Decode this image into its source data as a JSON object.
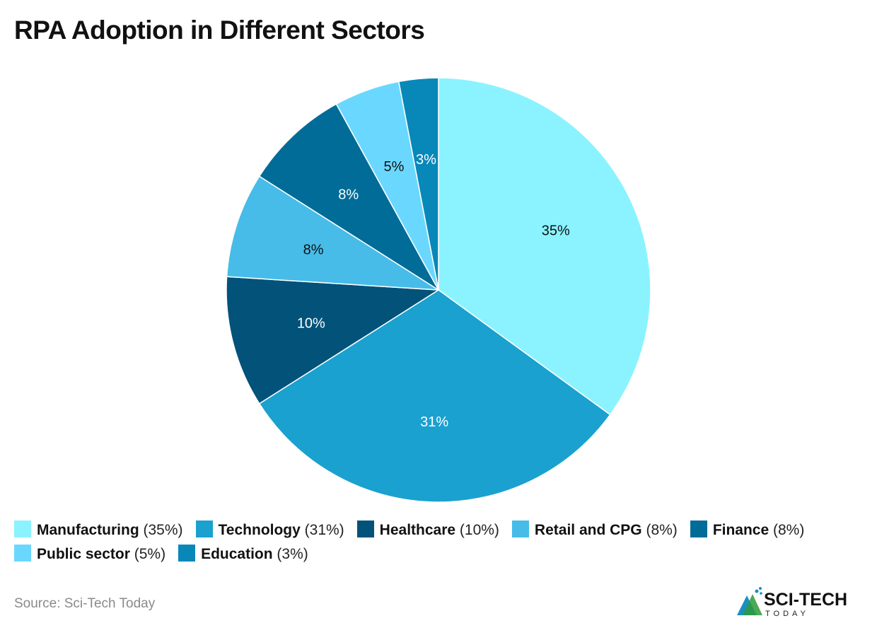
{
  "chart_data": {
    "type": "pie",
    "title": "RPA Adoption in Different Sectors",
    "slices": [
      {
        "label": "Manufacturing",
        "value": 35,
        "data_label": "35%",
        "legend_value": "(35%)",
        "color": "#8af3ff",
        "text_color": "#111111"
      },
      {
        "label": "Technology",
        "value": 31,
        "data_label": "31%",
        "legend_value": "(31%)",
        "color": "#1aa1cf",
        "text_color": "#ffffff"
      },
      {
        "label": "Healthcare",
        "value": 10,
        "data_label": "10%",
        "legend_value": "(10%)",
        "color": "#02527a",
        "text_color": "#ffffff"
      },
      {
        "label": "Retail and CPG",
        "value": 8,
        "data_label": "8%",
        "legend_value": "(8%)",
        "color": "#47bce8",
        "text_color": "#111111"
      },
      {
        "label": "Finance",
        "value": 8,
        "data_label": "8%",
        "legend_value": "(8%)",
        "color": "#016c98",
        "text_color": "#ffffff"
      },
      {
        "label": "Public sector",
        "value": 5,
        "data_label": "5%",
        "legend_value": "(5%)",
        "color": "#6ad8fe",
        "text_color": "#111111"
      },
      {
        "label": "Education",
        "value": 3,
        "data_label": "3%",
        "legend_value": "(3%)",
        "color": "#0888b8",
        "text_color": "#ffffff"
      }
    ],
    "start_angle": "top",
    "direction": "clockwise",
    "legend_position": "bottom"
  },
  "source": "Source: Sci-Tech Today",
  "logo": {
    "text_top": "SCI-TECH",
    "text_bottom": "TODAY"
  }
}
